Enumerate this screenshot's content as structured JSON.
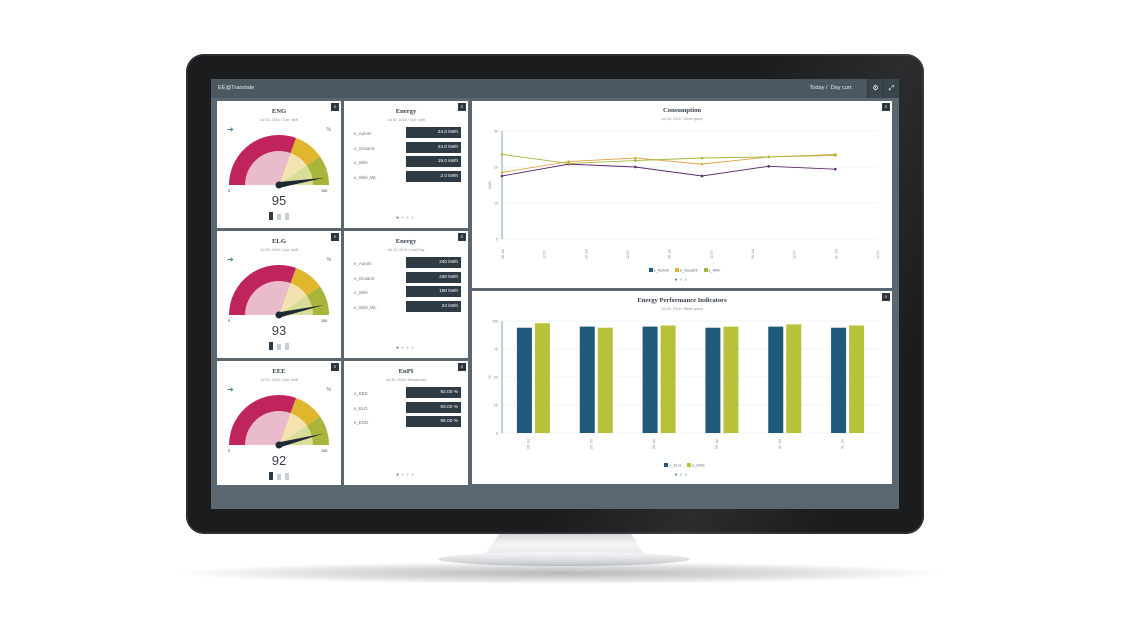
{
  "app": {
    "brand": "EE@Translate",
    "nav_today": "Today",
    "nav_day": "Day curr."
  },
  "icons": {
    "settings": "gear-icon",
    "fullscreen": "expand-icon",
    "zoom": "magnify-icon",
    "arrow": "arrow-right-icon"
  },
  "colors": {
    "crimson": "#c0245d",
    "pink": "#eabccb",
    "cream": "#f2e3b0",
    "amber": "#e0b62e",
    "olive": "#a9b43a",
    "navy": "#1f5a7a",
    "lime": "#b7c13a"
  },
  "gauges": [
    {
      "title": "ENG",
      "subtitle": "Jul 30, 2016 / Curr. shift",
      "unit": "%",
      "min": "0",
      "max": "100",
      "value": "95"
    },
    {
      "title": "ELG",
      "subtitle": "Jul 30, 2016 / Curr. shift",
      "unit": "%",
      "min": "0",
      "max": "100",
      "value": "93"
    },
    {
      "title": "EEE",
      "subtitle": "Jul 30, 2016 / Curr. shift",
      "unit": "%",
      "min": "0",
      "max": "100",
      "value": "92"
    }
  ],
  "kpi": [
    {
      "title": "Energy",
      "subtitle": "Jul 30, 2016 / Curr. shift",
      "rows": [
        {
          "label": "e_Autom",
          "value": "24.0 kWh"
        },
        {
          "label": "e_Gesamt",
          "value": "24.0 kWh"
        },
        {
          "label": "e_Wirk",
          "value": "19.0 kWh"
        },
        {
          "label": "e_Wirk_WL",
          "value": "2.0 kWh"
        }
      ]
    },
    {
      "title": "Energy",
      "subtitle": "Jul 30, 2016 / Last Day",
      "rows": [
        {
          "label": "e_Autom",
          "value": "240 kWh"
        },
        {
          "label": "e_Gesamt",
          "value": "230 kWh"
        },
        {
          "label": "e_Wirk",
          "value": "190 kWh"
        },
        {
          "label": "e_Wirk_WL",
          "value": "24 kWh"
        }
      ]
    },
    {
      "title": "EnPI",
      "subtitle": "Jul 30, 2016 / Benchmark",
      "rows": [
        {
          "label": "e_EEE",
          "value": "92.00 %"
        },
        {
          "label": "e_ELG",
          "value": "93.00 %"
        },
        {
          "label": "e_ENG",
          "value": "95.00 %"
        }
      ]
    }
  ],
  "consumption": {
    "title": "Consumption",
    "subtitle": "Jul 23, 2016 / Week query"
  },
  "enpi_chart": {
    "title": "Energy Performance Indicators",
    "subtitle": "Jul 23, 2016 / Week query"
  },
  "chart_data": [
    {
      "type": "line",
      "title": "Consumption",
      "ylabel": "kWh",
      "ylim": [
        0,
        30
      ],
      "yticks": [
        "0",
        "10",
        "20",
        "30"
      ],
      "x": [
        "26. Jul",
        "12:00",
        "27. Jul",
        "12:00",
        "28. Jul",
        "12:00",
        "29. Jul",
        "12:00",
        "30. Jul",
        "12:00"
      ],
      "series": [
        {
          "name": "e_Autom",
          "color": "#5a2a6a",
          "points": [
            [
              0,
              17.5
            ],
            [
              1,
              20.8
            ],
            [
              2,
              20
            ],
            [
              3,
              17.5
            ],
            [
              4,
              20.2
            ],
            [
              5,
              19.4
            ]
          ]
        },
        {
          "name": "e_Gesamt",
          "color": "#e0a64a",
          "points": [
            [
              0,
              18.5
            ],
            [
              1,
              21.5
            ],
            [
              2,
              22.5
            ],
            [
              3,
              20.8
            ],
            [
              4,
              22.8
            ],
            [
              5,
              23.5
            ]
          ]
        },
        {
          "name": "e_Wirk",
          "color": "#a9b43a",
          "points": [
            [
              0,
              23.5
            ],
            [
              1,
              21
            ],
            [
              2,
              21.8
            ],
            [
              3,
              22.5
            ],
            [
              4,
              22.8
            ],
            [
              5,
              23.2
            ]
          ]
        }
      ],
      "grid": true,
      "legend": "bottom"
    },
    {
      "type": "bar",
      "title": "Energy Performance Indicators",
      "ylabel": "%",
      "ylim": [
        0,
        100
      ],
      "yticks": [
        "0",
        "25",
        "50",
        "75",
        "100"
      ],
      "categories": [
        "26. Jul",
        "27. Jul",
        "28. Jul",
        "29. Jul",
        "30. Jul",
        "31. Jul"
      ],
      "series": [
        {
          "name": "e_ELG",
          "color": "#1f5a7a",
          "values": [
            94,
            95,
            95,
            94,
            95,
            94
          ]
        },
        {
          "name": "e_ENG",
          "color": "#b7c13a",
          "values": [
            98,
            94,
            96,
            95,
            97,
            96
          ]
        }
      ],
      "grid": true,
      "legend": "bottom"
    }
  ]
}
